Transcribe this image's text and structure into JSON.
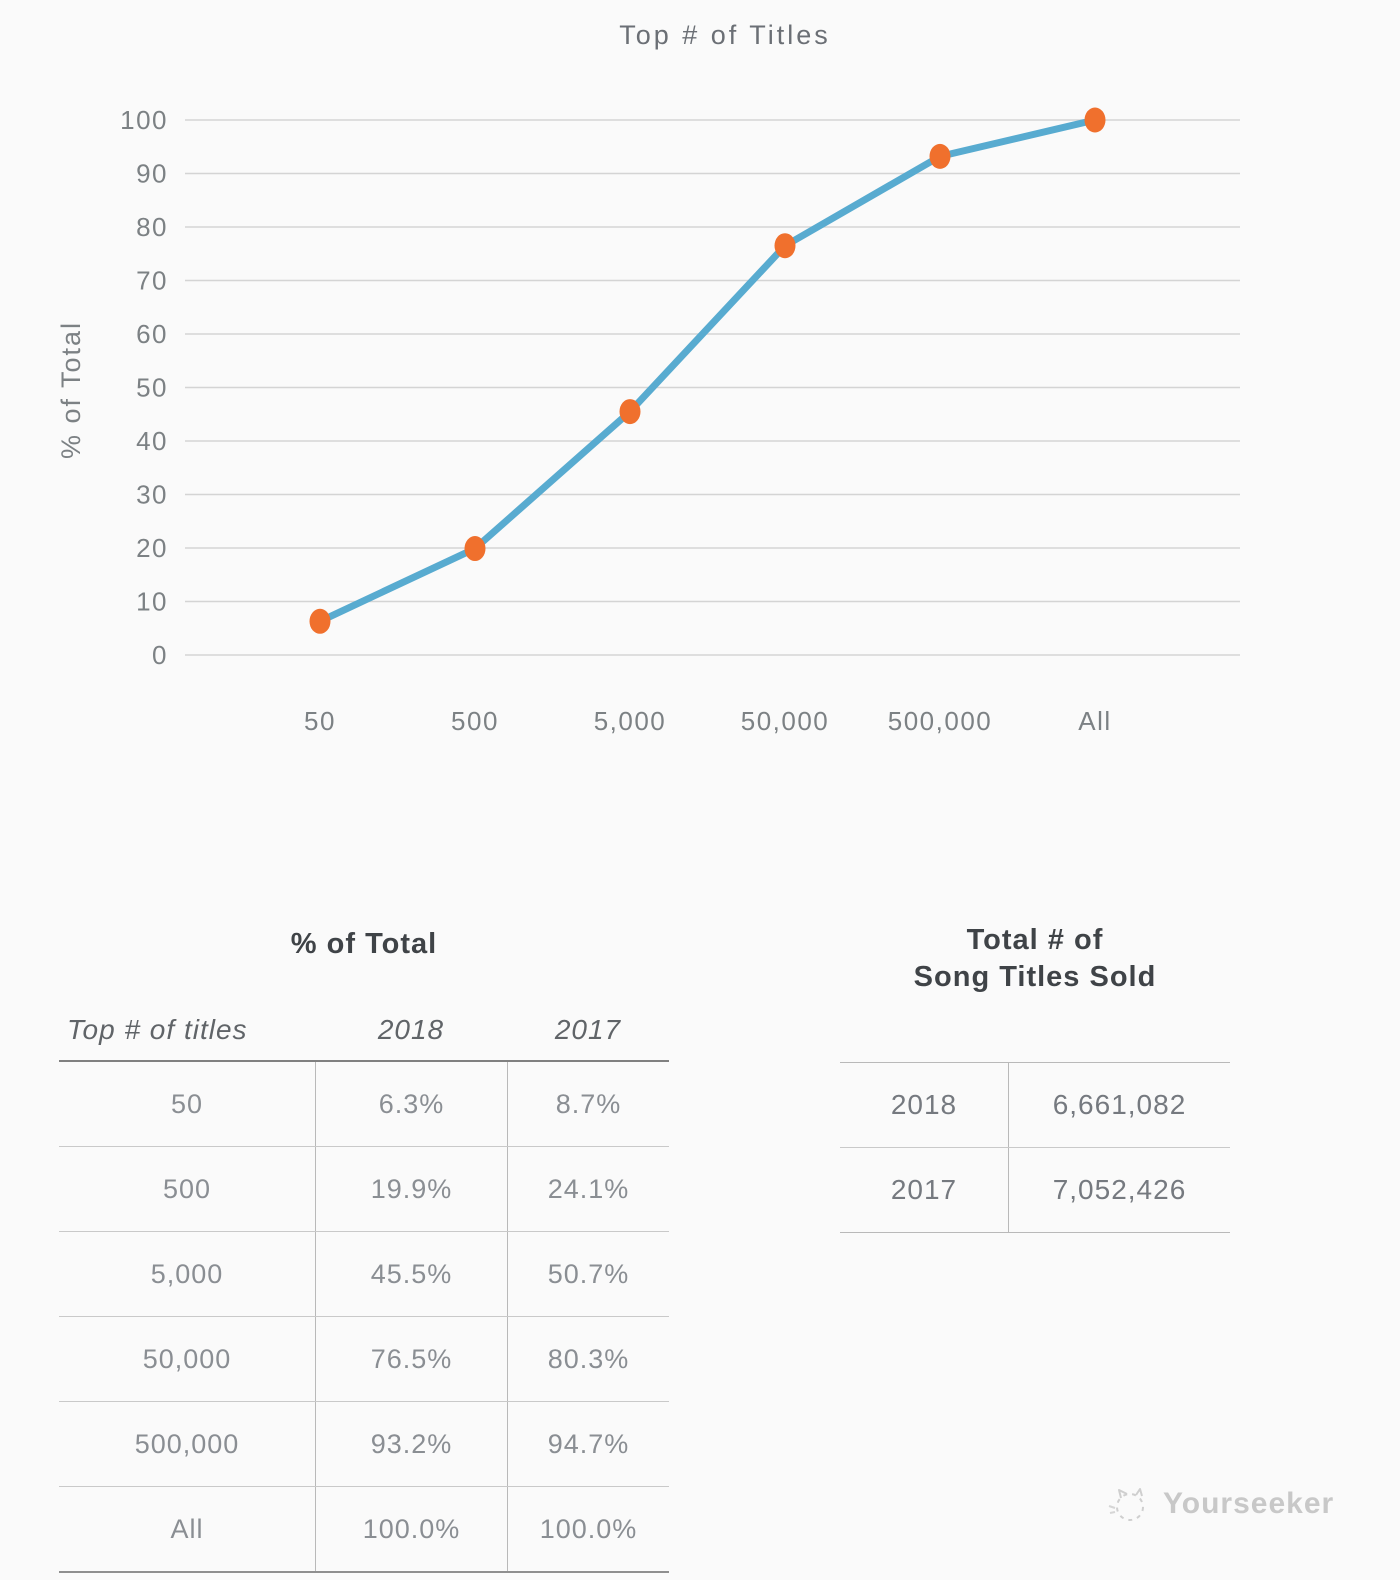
{
  "chart": {
    "title": "Top # of Titles",
    "y_axis_label": "% of Total"
  },
  "chart_data": {
    "type": "line",
    "title": "Top # of Titles",
    "xlabel": "",
    "ylabel": "% of Total",
    "categories": [
      "50",
      "500",
      "5,000",
      "50,000",
      "500,000",
      "All"
    ],
    "series": [
      {
        "name": "2018",
        "values": [
          6.3,
          19.9,
          45.5,
          76.5,
          93.2,
          100.0
        ]
      }
    ],
    "ylim": [
      0,
      100
    ],
    "y_ticks": [
      0,
      10,
      20,
      30,
      40,
      50,
      60,
      70,
      80,
      90,
      100
    ],
    "grid": true,
    "legend": false,
    "line_color": "#58abd0",
    "marker_color": "#f0702d",
    "grid_color": "#d4d4d4"
  },
  "left_table": {
    "title": "% of Total",
    "columns": [
      "Top # of titles",
      "2018",
      "2017"
    ],
    "rows": [
      {
        "label": "50",
        "v2018": "6.3%",
        "v2017": "8.7%"
      },
      {
        "label": "500",
        "v2018": "19.9%",
        "v2017": "24.1%"
      },
      {
        "label": "5,000",
        "v2018": "45.5%",
        "v2017": "50.7%"
      },
      {
        "label": "50,000",
        "v2018": "76.5%",
        "v2017": "80.3%"
      },
      {
        "label": "500,000",
        "v2018": "93.2%",
        "v2017": "94.7%"
      },
      {
        "label": "All",
        "v2018": "100.0%",
        "v2017": "100.0%"
      }
    ]
  },
  "right_table": {
    "title_line1": "Total # of",
    "title_line2": "Song Titles Sold",
    "rows": [
      {
        "year": "2018",
        "value": "6,661,082"
      },
      {
        "year": "2017",
        "value": "7,052,426"
      }
    ]
  },
  "watermark": {
    "label": "Yourseeker"
  }
}
